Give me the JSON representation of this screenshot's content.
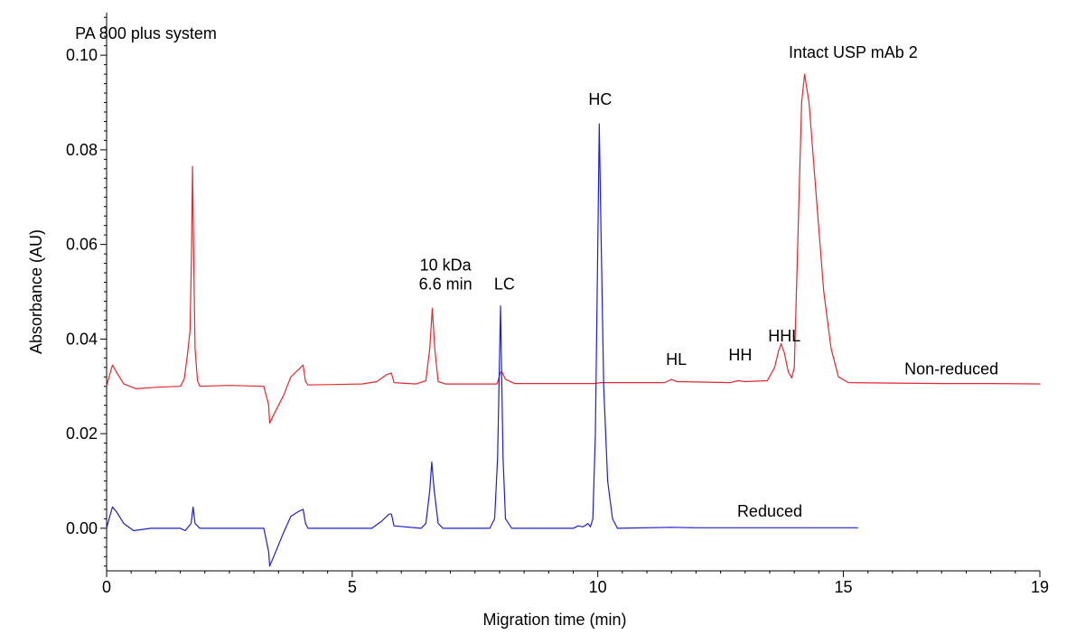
{
  "chart_data": {
    "type": "line",
    "title": "",
    "xlabel": "Migration time (min)",
    "ylabel": "Absorbance (AU)",
    "xlim": [
      0,
      19
    ],
    "ylim": [
      -0.009,
      0.109
    ],
    "x_ticks": [
      0,
      5,
      10,
      15,
      19
    ],
    "x_tick_labels": [
      "0",
      "5",
      "10",
      "15",
      "19"
    ],
    "y_ticks": [
      0.0,
      0.02,
      0.04,
      0.06,
      0.08,
      0.1
    ],
    "y_tick_labels": [
      "0.00",
      "0.02",
      "0.04",
      "0.06",
      "0.08",
      "0.10"
    ],
    "grid": false,
    "annotations": [
      {
        "text": "PA 800 plus system",
        "x": 0.8,
        "y": 0.1035
      },
      {
        "text": "10 kDa",
        "x": 6.9,
        "y": 0.0545
      },
      {
        "text": "6.6 min",
        "x": 6.9,
        "y": 0.0505
      },
      {
        "text": "LC",
        "x": 8.1,
        "y": 0.0505
      },
      {
        "text": "HC",
        "x": 10.05,
        "y": 0.0895
      },
      {
        "text": "HL",
        "x": 11.6,
        "y": 0.0345
      },
      {
        "text": "HH",
        "x": 12.9,
        "y": 0.0355
      },
      {
        "text": "HHL",
        "x": 13.8,
        "y": 0.0395
      },
      {
        "text": "Intact USP mAb 2",
        "x": 15.2,
        "y": 0.0995
      },
      {
        "text": "Non-reduced",
        "x": 17.2,
        "y": 0.0325
      },
      {
        "text": "Reduced",
        "x": 13.5,
        "y": 0.0025
      }
    ],
    "series": [
      {
        "name": "Non-reduced",
        "color": "#e8262d",
        "x_end": 19,
        "points": [
          [
            0,
            0.03
          ],
          [
            0.05,
            0.032
          ],
          [
            0.12,
            0.0345
          ],
          [
            0.2,
            0.033
          ],
          [
            0.35,
            0.0305
          ],
          [
            0.6,
            0.0295
          ],
          [
            1.0,
            0.0298
          ],
          [
            1.5,
            0.03
          ],
          [
            1.58,
            0.0315
          ],
          [
            1.65,
            0.037
          ],
          [
            1.7,
            0.042
          ],
          [
            1.73,
            0.06
          ],
          [
            1.75,
            0.0765
          ],
          [
            1.77,
            0.06
          ],
          [
            1.8,
            0.038
          ],
          [
            1.85,
            0.0312
          ],
          [
            1.9,
            0.03
          ],
          [
            2.5,
            0.0302
          ],
          [
            3.2,
            0.03
          ],
          [
            3.3,
            0.026
          ],
          [
            3.32,
            0.0222
          ],
          [
            3.4,
            0.024
          ],
          [
            3.6,
            0.028
          ],
          [
            3.75,
            0.032
          ],
          [
            3.85,
            0.033
          ],
          [
            3.95,
            0.034
          ],
          [
            4.0,
            0.0345
          ],
          [
            4.05,
            0.031
          ],
          [
            4.1,
            0.0303
          ],
          [
            5.2,
            0.0305
          ],
          [
            5.5,
            0.031
          ],
          [
            5.7,
            0.0325
          ],
          [
            5.8,
            0.0328
          ],
          [
            5.85,
            0.0308
          ],
          [
            6.3,
            0.0305
          ],
          [
            6.5,
            0.0312
          ],
          [
            6.58,
            0.038
          ],
          [
            6.63,
            0.0465
          ],
          [
            6.68,
            0.038
          ],
          [
            6.75,
            0.031
          ],
          [
            6.9,
            0.0305
          ],
          [
            7.95,
            0.0305
          ],
          [
            8.02,
            0.033
          ],
          [
            8.05,
            0.033
          ],
          [
            8.12,
            0.0315
          ],
          [
            8.3,
            0.0306
          ],
          [
            9.95,
            0.0306
          ],
          [
            10.05,
            0.0308
          ],
          [
            11.35,
            0.0308
          ],
          [
            11.45,
            0.0312
          ],
          [
            11.5,
            0.0315
          ],
          [
            11.6,
            0.031
          ],
          [
            12.7,
            0.0308
          ],
          [
            12.85,
            0.0312
          ],
          [
            13.0,
            0.031
          ],
          [
            13.45,
            0.0312
          ],
          [
            13.6,
            0.034
          ],
          [
            13.68,
            0.0375
          ],
          [
            13.73,
            0.039
          ],
          [
            13.8,
            0.037
          ],
          [
            13.88,
            0.033
          ],
          [
            13.95,
            0.0318
          ],
          [
            14.0,
            0.034
          ],
          [
            14.07,
            0.06
          ],
          [
            14.15,
            0.09
          ],
          [
            14.21,
            0.096
          ],
          [
            14.3,
            0.09
          ],
          [
            14.45,
            0.07
          ],
          [
            14.6,
            0.05
          ],
          [
            14.75,
            0.038
          ],
          [
            14.9,
            0.032
          ],
          [
            15.1,
            0.0308
          ],
          [
            16.0,
            0.0307
          ],
          [
            17.0,
            0.0306
          ],
          [
            18.0,
            0.0306
          ],
          [
            19.0,
            0.0305
          ]
        ]
      },
      {
        "name": "Reduced",
        "color": "#1f1fd1",
        "x_end": 15.3,
        "points": [
          [
            0,
            0.0
          ],
          [
            0.05,
            0.002
          ],
          [
            0.12,
            0.0045
          ],
          [
            0.2,
            0.0035
          ],
          [
            0.35,
            0.001
          ],
          [
            0.55,
            -0.0005
          ],
          [
            0.9,
            0.0
          ],
          [
            1.5,
            0.0
          ],
          [
            1.6,
            -0.0005
          ],
          [
            1.72,
            0.001
          ],
          [
            1.76,
            0.0045
          ],
          [
            1.8,
            0.001
          ],
          [
            1.9,
            0.0
          ],
          [
            3.2,
            0.0
          ],
          [
            3.3,
            -0.005
          ],
          [
            3.32,
            -0.008
          ],
          [
            3.4,
            -0.006
          ],
          [
            3.6,
            -0.001
          ],
          [
            3.75,
            0.0025
          ],
          [
            3.9,
            0.0035
          ],
          [
            4.0,
            0.004
          ],
          [
            4.05,
            0.001
          ],
          [
            4.1,
            0.0
          ],
          [
            5.4,
            0.0
          ],
          [
            5.6,
            0.0015
          ],
          [
            5.75,
            0.003
          ],
          [
            5.8,
            0.003
          ],
          [
            5.85,
            0.0005
          ],
          [
            6.4,
            0.0
          ],
          [
            6.5,
            0.001
          ],
          [
            6.58,
            0.008
          ],
          [
            6.62,
            0.014
          ],
          [
            6.67,
            0.008
          ],
          [
            6.75,
            0.001
          ],
          [
            6.85,
            0.0
          ],
          [
            7.8,
            0.0
          ],
          [
            7.9,
            0.002
          ],
          [
            7.96,
            0.015
          ],
          [
            8.02,
            0.047
          ],
          [
            8.07,
            0.015
          ],
          [
            8.12,
            0.002
          ],
          [
            8.25,
            0.0
          ],
          [
            9.5,
            0.0
          ],
          [
            9.6,
            0.0005
          ],
          [
            9.7,
            0.0003
          ],
          [
            9.8,
            0.001
          ],
          [
            9.85,
            0.0003
          ],
          [
            9.9,
            0.002
          ],
          [
            9.95,
            0.02
          ],
          [
            10.0,
            0.06
          ],
          [
            10.03,
            0.0855
          ],
          [
            10.07,
            0.06
          ],
          [
            10.12,
            0.03
          ],
          [
            10.2,
            0.01
          ],
          [
            10.3,
            0.002
          ],
          [
            10.4,
            0.0
          ],
          [
            11.5,
            0.0002
          ],
          [
            12.0,
            0.0001
          ],
          [
            13.0,
            0.0001
          ],
          [
            14.0,
            0.0001
          ],
          [
            15.3,
            0.0001
          ]
        ]
      }
    ]
  }
}
